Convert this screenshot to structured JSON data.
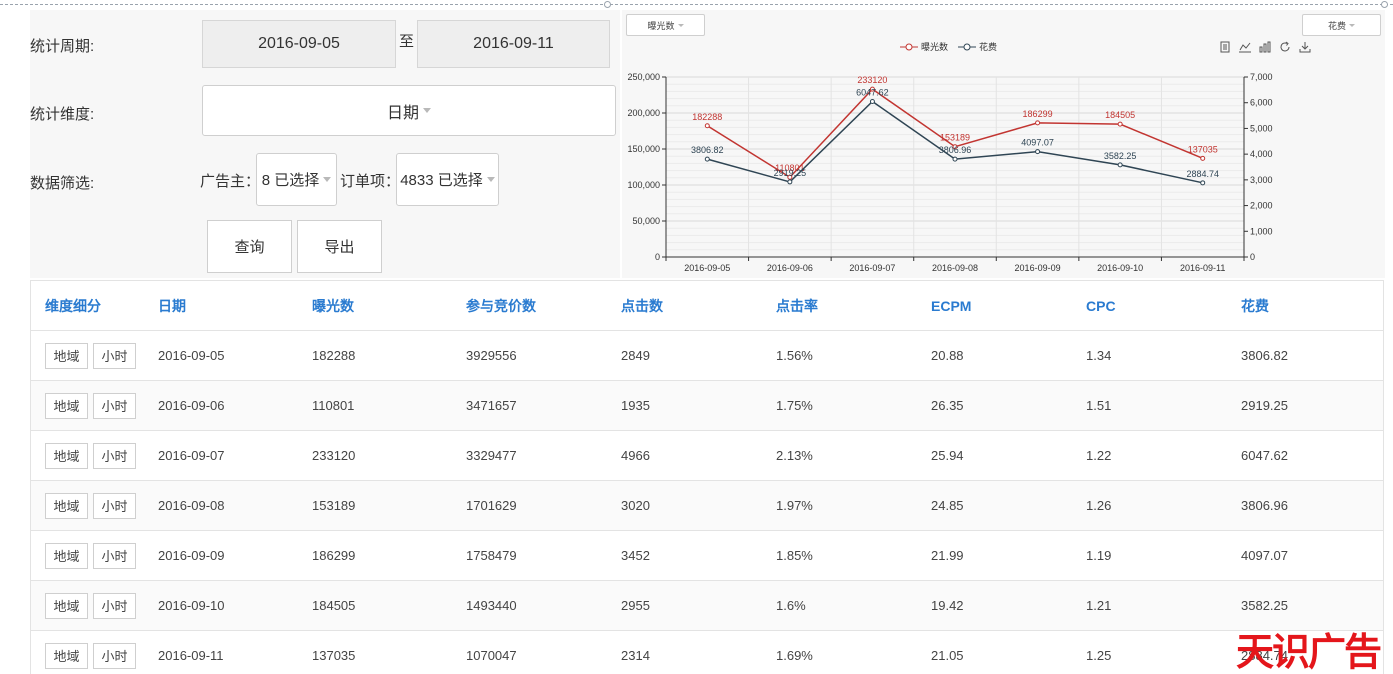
{
  "filters": {
    "period_label": "统计周期:",
    "start_date": "2016-09-05",
    "to_label": "至",
    "end_date": "2016-09-11",
    "dimension_label": "统计维度:",
    "dimension_value": "日期",
    "filter_label": "数据筛选:",
    "advertiser_label": "广告主：",
    "advertiser_value": "8 已选择",
    "order_label": "订单项：",
    "order_value": "4833 已选择",
    "query_button": "查询",
    "export_button": "导出"
  },
  "chart_controls": {
    "left_select": "曝光数",
    "right_select": "花费"
  },
  "chart_data": {
    "type": "line",
    "categories": [
      "2016-09-05",
      "2016-09-06",
      "2016-09-07",
      "2016-09-08",
      "2016-09-09",
      "2016-09-10",
      "2016-09-11"
    ],
    "series": [
      {
        "name": "曝光数",
        "axis": "left",
        "color": "#c23531",
        "values": [
          182288,
          110801,
          233120,
          153189,
          186299,
          184505,
          137035
        ],
        "labels": [
          "182288",
          "110801",
          "233120",
          "153189",
          "186299",
          "184505",
          "137035"
        ]
      },
      {
        "name": "花费",
        "axis": "right",
        "color": "#2f4554",
        "values": [
          3806.82,
          2919.25,
          6047.62,
          3806.96,
          4097.07,
          3582.25,
          2884.74
        ],
        "labels": [
          "3806.82",
          "2919.25",
          "6047.62",
          "3806.96",
          "4097.07",
          "3582.25",
          "2884.74"
        ]
      }
    ],
    "y_left": {
      "min": 0,
      "max": 250000,
      "ticks": [
        "0",
        "50,000",
        "100,000",
        "150,000",
        "200,000",
        "250,000"
      ]
    },
    "y_right": {
      "min": 0,
      "max": 7000,
      "ticks": [
        "0",
        "1,000",
        "2,000",
        "3,000",
        "4,000",
        "5,000",
        "6,000",
        "7,000"
      ]
    },
    "grid": true,
    "legend": "top-center"
  },
  "table": {
    "headers": [
      "维度细分",
      "日期",
      "曝光数",
      "参与竞价数",
      "点击数",
      "点击率",
      "ECPM",
      "CPC",
      "花费"
    ],
    "region_button": "地域",
    "hour_button": "小时",
    "rows": [
      [
        "2016-09-05",
        "182288",
        "3929556",
        "2849",
        "1.56%",
        "20.88",
        "1.34",
        "3806.82"
      ],
      [
        "2016-09-06",
        "110801",
        "3471657",
        "1935",
        "1.75%",
        "26.35",
        "1.51",
        "2919.25"
      ],
      [
        "2016-09-07",
        "233120",
        "3329477",
        "4966",
        "2.13%",
        "25.94",
        "1.22",
        "6047.62"
      ],
      [
        "2016-09-08",
        "153189",
        "1701629",
        "3020",
        "1.97%",
        "24.85",
        "1.26",
        "3806.96"
      ],
      [
        "2016-09-09",
        "186299",
        "1758479",
        "3452",
        "1.85%",
        "21.99",
        "1.19",
        "4097.07"
      ],
      [
        "2016-09-10",
        "184505",
        "1493440",
        "2955",
        "1.6%",
        "19.42",
        "1.21",
        "3582.25"
      ],
      [
        "2016-09-11",
        "137035",
        "1070047",
        "2314",
        "1.69%",
        "21.05",
        "1.25",
        "2884.74"
      ]
    ]
  },
  "watermark": "天识广告"
}
